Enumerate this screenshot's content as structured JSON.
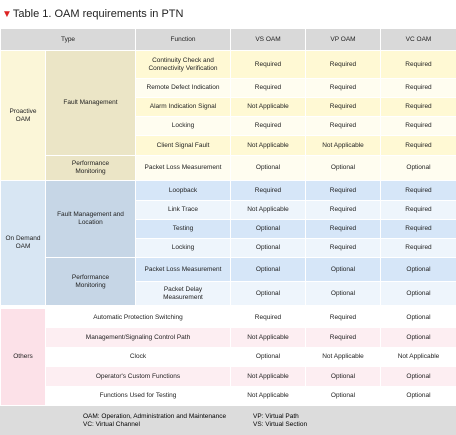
{
  "header": {
    "title": "Table 1. OAM requirements in PTN",
    "columns": [
      "Type",
      "Function",
      "VS OAM",
      "VP OAM",
      "VC OAM"
    ]
  },
  "groups": [
    {
      "name": "Proactive OAM",
      "subgroups": [
        {
          "name": "Fault Management",
          "rows": [
            {
              "function": "Continuity Check and Connectivity Verification",
              "values": [
                "Required",
                "Required",
                "Required"
              ]
            },
            {
              "function": "Remote Defect Indication",
              "values": [
                "Required",
                "Required",
                "Required"
              ]
            },
            {
              "function": "Alarm Indication Signal",
              "values": [
                "Not Applicable",
                "Required",
                "Required"
              ]
            },
            {
              "function": "Locking",
              "values": [
                "Required",
                "Required",
                "Required"
              ]
            },
            {
              "function": "Client Signal Fault",
              "values": [
                "Not Applicable",
                "Not Applicable",
                "Required"
              ]
            }
          ]
        },
        {
          "name": "Performance Monitoring",
          "rows": [
            {
              "function": "Packet Loss Measurement",
              "values": [
                "Optional",
                "Optional",
                "Optional"
              ]
            }
          ]
        }
      ]
    },
    {
      "name": "On Demand OAM",
      "subgroups": [
        {
          "name": "Fault Management and Location",
          "rows": [
            {
              "function": "Loopback",
              "values": [
                "Required",
                "Required",
                "Required"
              ]
            },
            {
              "function": "Link Trace",
              "values": [
                "Not Applicable",
                "Required",
                "Required"
              ]
            },
            {
              "function": "Testing",
              "values": [
                "Optional",
                "Required",
                "Required"
              ]
            },
            {
              "function": "Locking",
              "values": [
                "Optional",
                "Required",
                "Required"
              ]
            }
          ]
        },
        {
          "name": "Performance Monitoring",
          "rows": [
            {
              "function": "Packet Loss Measurement",
              "values": [
                "Optional",
                "Optional",
                "Optional"
              ]
            },
            {
              "function": "Packet Delay Measurement",
              "values": [
                "Optional",
                "Optional",
                "Optional"
              ]
            }
          ]
        }
      ]
    },
    {
      "name": "Others",
      "rows": [
        {
          "function": "Automatic Protection Switching",
          "values": [
            "Required",
            "Required",
            "Optional"
          ]
        },
        {
          "function": "Management/Signaling Control Path",
          "values": [
            "Not Applicable",
            "Required",
            "Optional"
          ]
        },
        {
          "function": "Clock",
          "values": [
            "Optional",
            "Not Applicable",
            "Not Applicable"
          ]
        },
        {
          "function": "Operator's Custom Functions",
          "values": [
            "Not Applicable",
            "Optional",
            "Optional"
          ]
        },
        {
          "function": "Functions Used for Testing",
          "values": [
            "Not Applicable",
            "Optional",
            "Optional"
          ]
        }
      ]
    }
  ],
  "footer": {
    "notes": [
      "OAM: Operation, Administration and Maintenance",
      "VP: Virtual Path",
      "VC: Virtual Channel",
      "VS: Virtual Section"
    ]
  }
}
